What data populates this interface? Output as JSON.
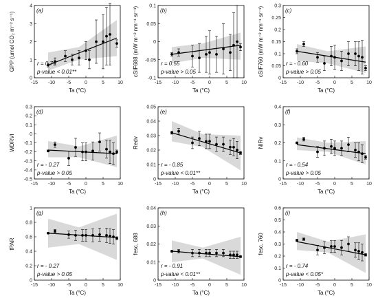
{
  "figure": {
    "panels": [
      {
        "tag": "(a)",
        "ylabel": "GPP (umol CO₂ m⁻² s⁻¹)",
        "xlabel": "Ta (°C)",
        "r_text": "r = 0.79",
        "p_text": "p-value < 0.01**"
      },
      {
        "tag": "(b)",
        "ylabel": "cSIF688 (mW m⁻² nm⁻¹ sr⁻¹)",
        "xlabel": "Ta (°C)",
        "r_text": "r = 0.55",
        "p_text": "p-value > 0.05"
      },
      {
        "tag": "(c)",
        "ylabel": "cSIF760 (mW m⁻² nm⁻¹ sr⁻¹)",
        "xlabel": "Ta (°C)",
        "r_text": "r = - 0.60",
        "p_text": "p-value > 0.05"
      },
      {
        "tag": "(d)",
        "ylabel": "WDRVI",
        "xlabel": "Ta (°C)",
        "r_text": "r = - 0.27",
        "p_text": "p-value > 0.05"
      },
      {
        "tag": "(e)",
        "ylabel": "Redv",
        "xlabel": "Ta (°C)",
        "r_text": "r = - 0.85",
        "p_text": "p-value < 0.01**"
      },
      {
        "tag": "(f)",
        "ylabel": "NIRv",
        "xlabel": "Ta (°C)",
        "r_text": "r = - 0.54",
        "p_text": "p-value > 0.05"
      },
      {
        "tag": "(g)",
        "ylabel": "fPAR",
        "xlabel": "Ta (°C)",
        "r_text": "r = - 0.27",
        "p_text": "p-value > 0.05"
      },
      {
        "tag": "(h)",
        "ylabel": "fesc, 688",
        "xlabel": "Ta (°C)",
        "r_text": "r = - 0.91",
        "p_text": "p-value < 0.01**"
      },
      {
        "tag": "(i)",
        "ylabel": "fesc, 760",
        "xlabel": "Ta (°C)",
        "r_text": "r = - 0.74",
        "p_text": "p-value < 0.05*"
      }
    ]
  },
  "chart_data": [
    {
      "type": "scatter",
      "title": "",
      "xlim": [
        -15,
        10
      ],
      "ylim": [
        0,
        4
      ],
      "xticks": [
        -15,
        -10,
        -5,
        0,
        5,
        10
      ],
      "yticks": [
        0,
        1,
        2,
        3,
        4
      ],
      "x": [
        -11,
        -9,
        -6,
        -4,
        -2,
        0,
        1,
        3,
        5,
        6,
        7,
        9
      ],
      "y": [
        0.7,
        0.9,
        1.2,
        1.0,
        1.1,
        1.5,
        1.0,
        2.0,
        2.0,
        2.3,
        2.4,
        1.9
      ],
      "err": [
        0.1,
        0.2,
        0.3,
        0.3,
        0.4,
        0.5,
        0.5,
        1.2,
        1.5,
        1.6,
        1.7,
        0.2
      ],
      "fit": [
        [
          -11,
          0.7
        ],
        [
          9,
          2.2
        ]
      ],
      "band": [
        [
          -11,
          0.4,
          1.4
        ],
        [
          -2,
          1.0,
          1.7
        ],
        [
          9,
          1.2,
          3.2
        ]
      ]
    },
    {
      "type": "scatter",
      "title": "",
      "xlim": [
        -15,
        10
      ],
      "ylim": [
        -0.1,
        0.1
      ],
      "xticks": [
        -15,
        -10,
        -5,
        0,
        5,
        10
      ],
      "yticks": [
        -0.1,
        -0.05,
        0,
        0.05,
        0.1
      ],
      "x": [
        -11,
        -9,
        -5,
        -3,
        -1,
        0,
        2,
        4,
        6,
        7,
        8,
        9
      ],
      "y": [
        -0.035,
        -0.03,
        -0.04,
        -0.045,
        -0.035,
        -0.03,
        -0.035,
        -0.02,
        -0.03,
        -0.01,
        0.0,
        -0.015
      ],
      "err": [
        0.005,
        0.01,
        0.03,
        0.04,
        0.05,
        0.06,
        0.05,
        0.07,
        0.05,
        0.09,
        0.1,
        0.01
      ],
      "fit": [
        [
          -11,
          -0.035
        ],
        [
          9,
          -0.01
        ]
      ],
      "band": [
        [
          -11,
          -0.06,
          -0.015
        ],
        [
          -2,
          -0.045,
          -0.005
        ],
        [
          9,
          -0.05,
          0.025
        ]
      ]
    },
    {
      "type": "scatter",
      "title": "",
      "xlim": [
        -15,
        10
      ],
      "ylim": [
        0,
        0.3
      ],
      "xticks": [
        -15,
        -10,
        -5,
        0,
        5,
        10
      ],
      "yticks": [
        0,
        0.05,
        0.1,
        0.15,
        0.2,
        0.25,
        0.3
      ],
      "x": [
        -11,
        -9,
        -5,
        -3,
        -1,
        0,
        2,
        4,
        6,
        7,
        8,
        9
      ],
      "y": [
        0.11,
        0.14,
        0.085,
        0.06,
        0.09,
        0.085,
        0.07,
        0.1,
        0.1,
        0.09,
        0.085,
        0.04
      ],
      "err": [
        0.01,
        0.01,
        0.02,
        0.03,
        0.04,
        0.05,
        0.04,
        0.05,
        0.05,
        0.06,
        0.07,
        0.01
      ],
      "fit": [
        [
          -11,
          0.11
        ],
        [
          9,
          0.065
        ]
      ],
      "band": [
        [
          -11,
          0.07,
          0.14
        ],
        [
          -2,
          0.06,
          0.11
        ],
        [
          9,
          0.02,
          0.13
        ]
      ]
    },
    {
      "type": "scatter",
      "title": "",
      "xlim": [
        -15,
        10
      ],
      "ylim": [
        -0.5,
        0.3
      ],
      "xticks": [
        -15,
        -10,
        -5,
        0,
        5,
        10
      ],
      "yticks": [
        -0.5,
        -0.4,
        -0.3,
        -0.2,
        -0.1,
        0,
        0.1,
        0.2,
        0.3
      ],
      "x": [
        -11,
        -9,
        -5,
        -3,
        -1,
        0,
        2,
        4,
        6,
        7,
        8,
        9
      ],
      "y": [
        -0.19,
        -0.12,
        -0.27,
        -0.15,
        -0.2,
        -0.2,
        -0.19,
        -0.09,
        -0.17,
        -0.2,
        -0.22,
        -0.2
      ],
      "err": [
        0.01,
        0.03,
        0.08,
        0.1,
        0.1,
        0.1,
        0.1,
        0.1,
        0.1,
        0.13,
        0.12,
        0.02
      ],
      "fit": [
        [
          -11,
          -0.18
        ],
        [
          9,
          -0.22
        ]
      ],
      "band": [
        [
          -11,
          -0.26,
          -0.08
        ],
        [
          -2,
          -0.26,
          -0.14
        ],
        [
          9,
          -0.37,
          -0.02
        ]
      ]
    },
    {
      "type": "scatter",
      "title": "",
      "xlim": [
        -15,
        10
      ],
      "ylim": [
        0,
        0.05
      ],
      "xticks": [
        -15,
        -10,
        -5,
        0,
        5,
        10
      ],
      "yticks": [
        0,
        0.01,
        0.02,
        0.03,
        0.04,
        0.05
      ],
      "x": [
        -11,
        -9,
        -5,
        -3,
        -1,
        0,
        2,
        4,
        6,
        7,
        8,
        9
      ],
      "y": [
        0.032,
        0.033,
        0.025,
        0.028,
        0.026,
        0.026,
        0.024,
        0.024,
        0.022,
        0.022,
        0.02,
        0.018
      ],
      "err": [
        0.001,
        0.002,
        0.004,
        0.005,
        0.005,
        0.005,
        0.005,
        0.005,
        0.005,
        0.006,
        0.006,
        0.001
      ],
      "fit": [
        [
          -11,
          0.032
        ],
        [
          9,
          0.018
        ]
      ],
      "band": [
        [
          -11,
          0.026,
          0.04
        ],
        [
          -2,
          0.022,
          0.031
        ],
        [
          9,
          0.006,
          0.03
        ]
      ]
    },
    {
      "type": "scatter",
      "title": "",
      "xlim": [
        -15,
        10
      ],
      "ylim": [
        0,
        0.4
      ],
      "xticks": [
        -15,
        -10,
        -5,
        0,
        5,
        10
      ],
      "yticks": [
        0,
        0.1,
        0.2,
        0.3,
        0.4
      ],
      "x": [
        -11,
        -9,
        -5,
        -3,
        -1,
        0,
        2,
        4,
        6,
        7,
        8,
        9
      ],
      "y": [
        0.2,
        0.22,
        0.15,
        0.17,
        0.18,
        0.17,
        0.17,
        0.19,
        0.16,
        0.15,
        0.14,
        0.12
      ],
      "err": [
        0.005,
        0.01,
        0.03,
        0.04,
        0.04,
        0.04,
        0.04,
        0.04,
        0.04,
        0.05,
        0.05,
        0.01
      ],
      "fit": [
        [
          -11,
          0.19
        ],
        [
          9,
          0.14
        ]
      ],
      "band": [
        [
          -11,
          0.16,
          0.23
        ],
        [
          -2,
          0.15,
          0.2
        ],
        [
          9,
          0.08,
          0.21
        ]
      ]
    },
    {
      "type": "scatter",
      "title": "",
      "xlim": [
        -15,
        10
      ],
      "ylim": [
        0,
        1
      ],
      "xticks": [
        -15,
        -10,
        -5,
        0,
        5,
        10
      ],
      "yticks": [
        0,
        0.2,
        0.4,
        0.6,
        0.8,
        1
      ],
      "x": [
        -11,
        -9,
        -5,
        -3,
        -1,
        0,
        2,
        4,
        6,
        7,
        8,
        9
      ],
      "y": [
        0.65,
        0.68,
        0.63,
        0.62,
        0.62,
        0.62,
        0.62,
        0.63,
        0.62,
        0.61,
        0.6,
        0.58
      ],
      "err": [
        0.01,
        0.02,
        0.05,
        0.07,
        0.08,
        0.08,
        0.09,
        0.09,
        0.1,
        0.1,
        0.1,
        0.02
      ],
      "fit": [
        [
          -11,
          0.65
        ],
        [
          9,
          0.59
        ]
      ],
      "band": [
        [
          -11,
          0.45,
          0.85
        ],
        [
          -2,
          0.5,
          0.73
        ],
        [
          9,
          0.28,
          0.92
        ]
      ]
    },
    {
      "type": "scatter",
      "title": "",
      "xlim": [
        -15,
        10
      ],
      "ylim": [
        0,
        0.04
      ],
      "xticks": [
        -15,
        -10,
        -5,
        0,
        5,
        10
      ],
      "yticks": [
        0,
        0.01,
        0.02,
        0.03,
        0.04
      ],
      "x": [
        -11,
        -9,
        -5,
        -3,
        -1,
        0,
        2,
        4,
        6,
        7,
        8,
        9
      ],
      "y": [
        0.016,
        0.016,
        0.015,
        0.015,
        0.015,
        0.015,
        0.015,
        0.015,
        0.014,
        0.014,
        0.014,
        0.013
      ],
      "err": [
        0.0005,
        0.001,
        0.002,
        0.002,
        0.002,
        0.002,
        0.002,
        0.002,
        0.002,
        0.002,
        0.002,
        0.0005
      ],
      "fit": [
        [
          -11,
          0.016
        ],
        [
          9,
          0.013
        ]
      ],
      "band": [
        [
          -11,
          0.01,
          0.022
        ],
        [
          -2,
          0.012,
          0.018
        ],
        [
          9,
          0.003,
          0.024
        ]
      ]
    },
    {
      "type": "scatter",
      "title": "",
      "xlim": [
        -15,
        10
      ],
      "ylim": [
        0,
        0.6
      ],
      "xticks": [
        -15,
        -10,
        -5,
        0,
        5,
        10
      ],
      "yticks": [
        0,
        0.1,
        0.2,
        0.3,
        0.4,
        0.5,
        0.6
      ],
      "x": [
        -11,
        -9,
        -5,
        -3,
        -1,
        0,
        2,
        4,
        6,
        7,
        8,
        9
      ],
      "y": [
        0.33,
        0.34,
        0.25,
        0.27,
        0.28,
        0.28,
        0.27,
        0.3,
        0.25,
        0.24,
        0.23,
        0.21
      ],
      "err": [
        0.01,
        0.01,
        0.04,
        0.05,
        0.05,
        0.05,
        0.06,
        0.06,
        0.06,
        0.07,
        0.07,
        0.01
      ],
      "fit": [
        [
          -11,
          0.32
        ],
        [
          9,
          0.21
        ]
      ],
      "band": [
        [
          -11,
          0.25,
          0.4
        ],
        [
          -2,
          0.23,
          0.32
        ],
        [
          9,
          0.06,
          0.38
        ]
      ]
    }
  ]
}
